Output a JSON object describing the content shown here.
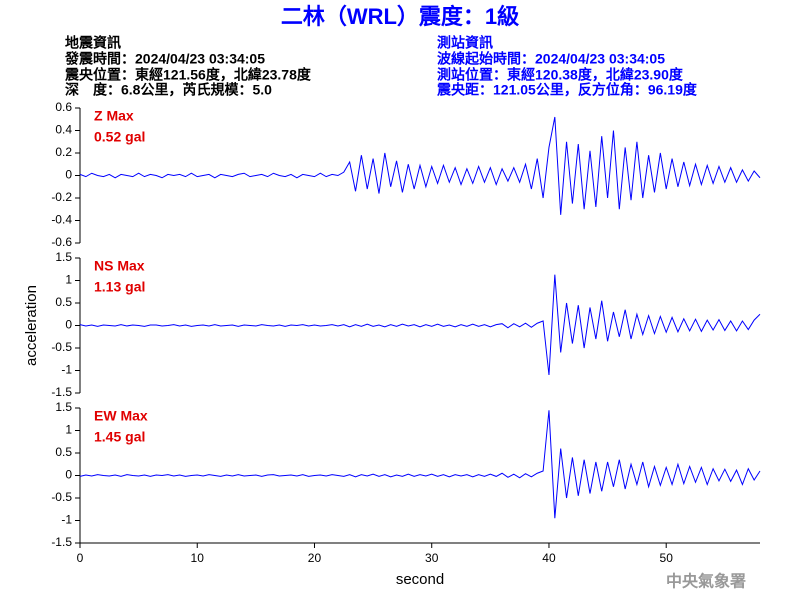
{
  "title": "二林（WRL）震度：1級",
  "info_left": [
    "地震資訊",
    "發震時間：2024/04/23 03:34:05",
    "震央位置：東經121.56度，北緯23.78度",
    "深　度：6.8公里，芮氏規模：5.0"
  ],
  "info_right": [
    "測站資訊",
    "波線起始時間：2024/04/23 03:34:05",
    "測站位置：東經120.38度，北緯23.90度",
    "震央距：121.05公里，反方位角：96.19度"
  ],
  "watermark": "中央氣象署",
  "chart_data": [
    {
      "type": "line",
      "annotations": [
        "Z Max",
        "0.52 gal"
      ],
      "color": "#0000ff",
      "xlim": [
        0,
        58
      ],
      "ylim": [
        -0.6,
        0.6
      ],
      "yticks": [
        0.6,
        0.4,
        0.2,
        0,
        -0.2,
        -0.4,
        -0.6
      ],
      "x": [
        0,
        0.5,
        1,
        1.5,
        2,
        2.5,
        3,
        3.5,
        4,
        4.5,
        5,
        5.5,
        6,
        6.5,
        7,
        7.5,
        8,
        8.5,
        9,
        9.5,
        10,
        10.5,
        11,
        11.5,
        12,
        12.5,
        13,
        13.5,
        14,
        14.5,
        15,
        15.5,
        16,
        16.5,
        17,
        17.5,
        18,
        18.5,
        19,
        19.5,
        20,
        20.5,
        21,
        21.5,
        22,
        22.5,
        23,
        23.5,
        24,
        24.5,
        25,
        25.5,
        26,
        26.5,
        27,
        27.5,
        28,
        28.5,
        29,
        29.5,
        30,
        30.5,
        31,
        31.5,
        32,
        32.5,
        33,
        33.5,
        34,
        34.5,
        35,
        35.5,
        36,
        36.5,
        37,
        37.5,
        38,
        38.5,
        39,
        39.5,
        40,
        40.5,
        41,
        41.5,
        42,
        42.5,
        43,
        43.5,
        44,
        44.5,
        45,
        45.5,
        46,
        46.5,
        47,
        47.5,
        48,
        48.5,
        49,
        49.5,
        50,
        50.5,
        51,
        51.5,
        52,
        52.5,
        53,
        53.5,
        54,
        54.5,
        55,
        55.5,
        56,
        56.5,
        57,
        57.5,
        58
      ],
      "values": [
        0.01,
        -0.01,
        0.02,
        0,
        -0.01,
        0.01,
        -0.02,
        0.01,
        0,
        -0.01,
        0.02,
        -0.01,
        0.01,
        0,
        -0.02,
        0.01,
        0,
        0.01,
        -0.01,
        0.02,
        -0.01,
        0,
        0.01,
        -0.02,
        0.01,
        0,
        -0.01,
        0.01,
        0.02,
        -0.01,
        0,
        0.01,
        -0.01,
        0.02,
        0,
        -0.01,
        0.01,
        -0.02,
        0.01,
        0,
        -0.01,
        0.02,
        -0.01,
        0.01,
        0,
        0.03,
        0.12,
        -0.14,
        0.18,
        -0.12,
        0.15,
        -0.16,
        0.2,
        -0.1,
        0.13,
        -0.15,
        0.1,
        -0.12,
        0.09,
        -0.1,
        0.08,
        -0.07,
        0.09,
        -0.06,
        0.07,
        -0.08,
        0.06,
        -0.07,
        0.08,
        -0.06,
        0.07,
        -0.08,
        0.06,
        -0.05,
        0.07,
        -0.06,
        0.1,
        -0.12,
        0.15,
        -0.2,
        0.25,
        0.52,
        -0.35,
        0.3,
        -0.25,
        0.28,
        -0.3,
        0.22,
        -0.28,
        0.35,
        -0.2,
        0.4,
        -0.3,
        0.25,
        -0.22,
        0.3,
        -0.2,
        0.18,
        -0.15,
        0.2,
        -0.12,
        0.15,
        -0.1,
        0.12,
        -0.09,
        0.1,
        -0.08,
        0.09,
        -0.07,
        0.08,
        -0.06,
        0.07,
        -0.06,
        0.05,
        -0.05,
        0.04,
        -0.02
      ]
    },
    {
      "type": "line",
      "annotations": [
        "NS Max",
        "1.13 gal"
      ],
      "color": "#0000ff",
      "ylabel": "acceleration",
      "xlim": [
        0,
        58
      ],
      "ylim": [
        -1.5,
        1.5
      ],
      "yticks": [
        1.5,
        1,
        0.5,
        0,
        -0.5,
        -1,
        -1.5
      ],
      "x": [
        0,
        0.5,
        1,
        1.5,
        2,
        2.5,
        3,
        3.5,
        4,
        4.5,
        5,
        5.5,
        6,
        6.5,
        7,
        7.5,
        8,
        8.5,
        9,
        9.5,
        10,
        10.5,
        11,
        11.5,
        12,
        12.5,
        13,
        13.5,
        14,
        14.5,
        15,
        15.5,
        16,
        16.5,
        17,
        17.5,
        18,
        18.5,
        19,
        19.5,
        20,
        20.5,
        21,
        21.5,
        22,
        22.5,
        23,
        23.5,
        24,
        24.5,
        25,
        25.5,
        26,
        26.5,
        27,
        27.5,
        28,
        28.5,
        29,
        29.5,
        30,
        30.5,
        31,
        31.5,
        32,
        32.5,
        33,
        33.5,
        34,
        34.5,
        35,
        35.5,
        36,
        36.5,
        37,
        37.5,
        38,
        38.5,
        39,
        39.5,
        40,
        40.5,
        41,
        41.5,
        42,
        42.5,
        43,
        43.5,
        44,
        44.5,
        45,
        45.5,
        46,
        46.5,
        47,
        47.5,
        48,
        48.5,
        49,
        49.5,
        50,
        50.5,
        51,
        51.5,
        52,
        52.5,
        53,
        53.5,
        54,
        54.5,
        55,
        55.5,
        56,
        56.5,
        57,
        57.5,
        58
      ],
      "values": [
        0.02,
        -0.01,
        0.01,
        -0.02,
        0.01,
        0,
        -0.01,
        0.02,
        -0.01,
        0.01,
        0,
        -0.02,
        0.01,
        0.01,
        -0.01,
        0,
        0.02,
        -0.01,
        0.01,
        -0.02,
        0,
        0.01,
        -0.01,
        0.02,
        -0.01,
        0,
        0.01,
        -0.02,
        0.01,
        0,
        -0.01,
        0.02,
        0,
        -0.01,
        0.01,
        -0.02,
        0.01,
        0,
        0.02,
        -0.01,
        0.01,
        -0.01,
        0,
        0.02,
        -0.01,
        0.02,
        -0.03,
        0.02,
        -0.02,
        0.03,
        -0.02,
        0.01,
        -0.03,
        0.02,
        -0.02,
        0.03,
        -0.01,
        0.02,
        -0.03,
        0.02,
        -0.02,
        0.03,
        -0.02,
        0.01,
        -0.03,
        0.02,
        -0.02,
        0.03,
        -0.02,
        0.02,
        -0.03,
        0.02,
        0.04,
        -0.05,
        0.04,
        -0.03,
        0.05,
        -0.04,
        0.05,
        0.1,
        -1.1,
        1.13,
        -0.6,
        0.5,
        -0.4,
        0.45,
        -0.5,
        0.4,
        -0.3,
        0.55,
        -0.35,
        0.3,
        -0.25,
        0.35,
        -0.3,
        0.25,
        -0.2,
        0.22,
        -0.18,
        0.2,
        -0.15,
        0.18,
        -0.14,
        0.15,
        -0.12,
        0.14,
        -0.13,
        0.12,
        -0.1,
        0.13,
        -0.11,
        0.1,
        -0.12,
        0.1,
        -0.09,
        0.12,
        0.25
      ]
    },
    {
      "type": "line",
      "annotations": [
        "EW Max",
        "1.45 gal"
      ],
      "color": "#0000ff",
      "xlabel": "second",
      "xlim": [
        0,
        58
      ],
      "ylim": [
        -1.5,
        1.5
      ],
      "yticks": [
        1.5,
        1,
        0.5,
        0,
        -0.5,
        -1,
        -1.5
      ],
      "xticks": [
        0,
        10,
        20,
        30,
        40,
        50
      ],
      "x": [
        0,
        0.5,
        1,
        1.5,
        2,
        2.5,
        3,
        3.5,
        4,
        4.5,
        5,
        5.5,
        6,
        6.5,
        7,
        7.5,
        8,
        8.5,
        9,
        9.5,
        10,
        10.5,
        11,
        11.5,
        12,
        12.5,
        13,
        13.5,
        14,
        14.5,
        15,
        15.5,
        16,
        16.5,
        17,
        17.5,
        18,
        18.5,
        19,
        19.5,
        20,
        20.5,
        21,
        21.5,
        22,
        22.5,
        23,
        23.5,
        24,
        24.5,
        25,
        25.5,
        26,
        26.5,
        27,
        27.5,
        28,
        28.5,
        29,
        29.5,
        30,
        30.5,
        31,
        31.5,
        32,
        32.5,
        33,
        33.5,
        34,
        34.5,
        35,
        35.5,
        36,
        36.5,
        37,
        37.5,
        38,
        38.5,
        39,
        39.5,
        40,
        40.5,
        41,
        41.5,
        42,
        42.5,
        43,
        43.5,
        44,
        44.5,
        45,
        45.5,
        46,
        46.5,
        47,
        47.5,
        48,
        48.5,
        49,
        49.5,
        50,
        50.5,
        51,
        51.5,
        52,
        52.5,
        53,
        53.5,
        54,
        54.5,
        55,
        55.5,
        56,
        56.5,
        57,
        57.5,
        58
      ],
      "values": [
        -0.02,
        0.01,
        -0.01,
        0.02,
        0,
        -0.01,
        0.01,
        -0.02,
        0.02,
        0,
        -0.01,
        0.01,
        -0.02,
        0.01,
        0,
        0.02,
        -0.01,
        0.01,
        -0.02,
        0,
        0.01,
        -0.01,
        0.02,
        0,
        -0.02,
        0.01,
        -0.01,
        0.02,
        -0.01,
        0,
        0.01,
        -0.02,
        0.01,
        0.02,
        -0.01,
        0,
        0.01,
        -0.01,
        0.02,
        -0.02,
        0,
        0.01,
        -0.01,
        0.02,
        0,
        -0.02,
        0.02,
        -0.03,
        0.02,
        -0.01,
        0.03,
        -0.02,
        0.02,
        -0.03,
        0.01,
        -0.02,
        0.03,
        -0.02,
        0.02,
        -0.01,
        0.03,
        -0.02,
        0.02,
        -0.03,
        0.02,
        -0.01,
        0.02,
        -0.03,
        0.02,
        -0.02,
        0.03,
        -0.02,
        0.05,
        -0.04,
        0.03,
        -0.05,
        0.04,
        -0.03,
        0.05,
        0.1,
        1.45,
        -0.95,
        0.6,
        -0.5,
        0.4,
        -0.45,
        0.35,
        -0.4,
        0.3,
        -0.35,
        0.3,
        -0.25,
        0.35,
        -0.3,
        0.25,
        -0.2,
        0.3,
        -0.25,
        0.2,
        -0.22,
        0.18,
        -0.2,
        0.25,
        -0.18,
        0.2,
        -0.15,
        0.18,
        -0.2,
        0.15,
        -0.12,
        0.14,
        -0.13,
        0.12,
        -0.2,
        0.15,
        -0.1,
        0.1
      ]
    }
  ]
}
